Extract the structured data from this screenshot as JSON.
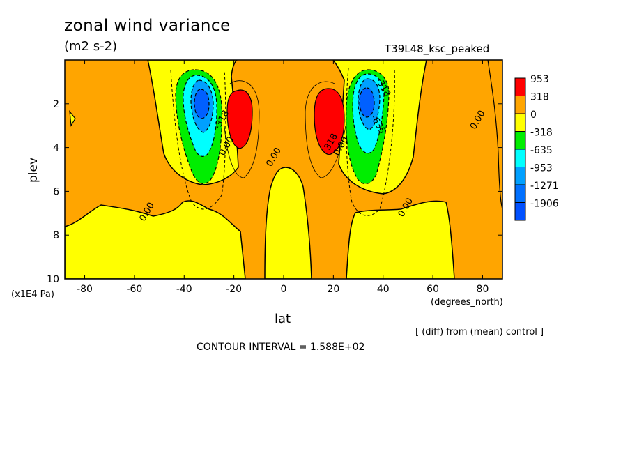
{
  "title": "zonal wind variance",
  "units": "(m2 s-2)",
  "run_label": "T39L48_ksc_peaked",
  "note": "[ (diff) from (mean) control ]",
  "contour_interval": "CONTOUR INTERVAL = 1.588E+02",
  "chart_data": {
    "type": "heatmap",
    "xlabel": "lat",
    "x_units": "(degrees_north)",
    "ylabel": "plev",
    "y_units": "(x1E4 Pa)",
    "xlim": [
      -88,
      88
    ],
    "ylim": [
      10,
      0
    ],
    "x_ticks": [
      -80,
      -60,
      -40,
      -20,
      0,
      20,
      40,
      60,
      80
    ],
    "y_ticks": [
      2,
      4,
      6,
      8,
      10
    ],
    "x_tick_labels": [
      "-80",
      "-60",
      "-40",
      "-20",
      "0",
      "20",
      "40",
      "60",
      "80"
    ],
    "y_tick_labels": [
      "2",
      "4",
      "6",
      "8",
      "10"
    ],
    "levels": [
      {
        "label": "953",
        "color": "#ff0000"
      },
      {
        "label": "318",
        "color": "#ffa500"
      },
      {
        "label": "0",
        "color": "#ffff00"
      },
      {
        "label": "-318",
        "color": "#00ee00"
      },
      {
        "label": "-635",
        "color": "#00ffff"
      },
      {
        "label": "-953",
        "color": "#00a0ff"
      },
      {
        "label": "-1271",
        "color": "#0070ff"
      },
      {
        "label": "-1906",
        "color": "#0050ff"
      }
    ],
    "contour_labels": [
      {
        "text": "0.00",
        "lat": -54,
        "p": 7.0
      },
      {
        "text": "0.00",
        "lat": -22,
        "p": 4.0
      },
      {
        "text": "0.00",
        "lat": -3,
        "p": 4.5
      },
      {
        "text": "0.00",
        "lat": 24,
        "p": 4.0
      },
      {
        "text": "0.00",
        "lat": 50,
        "p": 6.8
      },
      {
        "text": "0.00",
        "lat": 79,
        "p": 2.8
      },
      {
        "text": "-318",
        "lat": -24,
        "p": 2.8
      },
      {
        "text": "318",
        "lat": 20,
        "p": 3.8
      },
      {
        "text": "-635",
        "lat": 37,
        "p": 3.0
      },
      {
        "text": "-318",
        "lat": 39,
        "p": 1.3
      }
    ]
  }
}
